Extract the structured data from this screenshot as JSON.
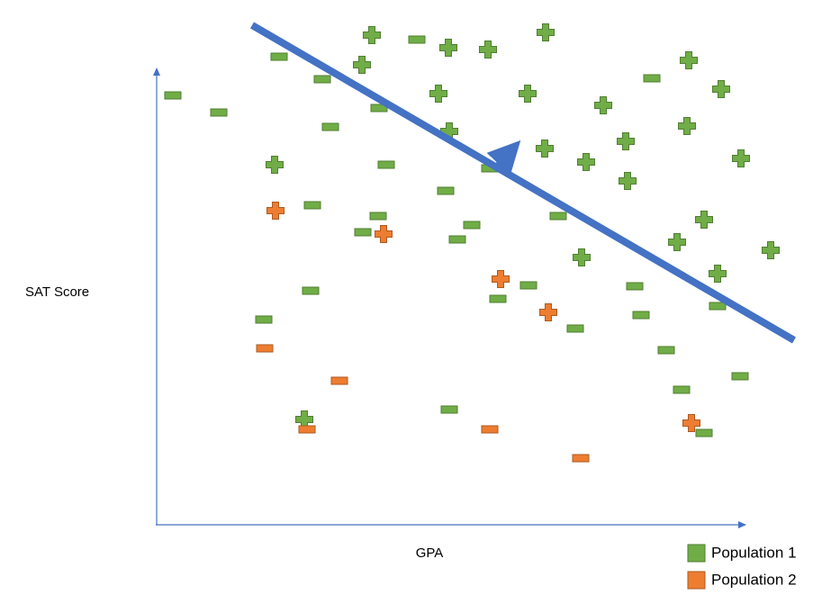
{
  "y_axis_label": "SAT Score",
  "x_axis_label": "GPA",
  "legend": [
    {
      "label": "Population 1",
      "color": "#70ad47"
    },
    {
      "label": "Population 2",
      "color": "#ed7d31"
    }
  ]
}
